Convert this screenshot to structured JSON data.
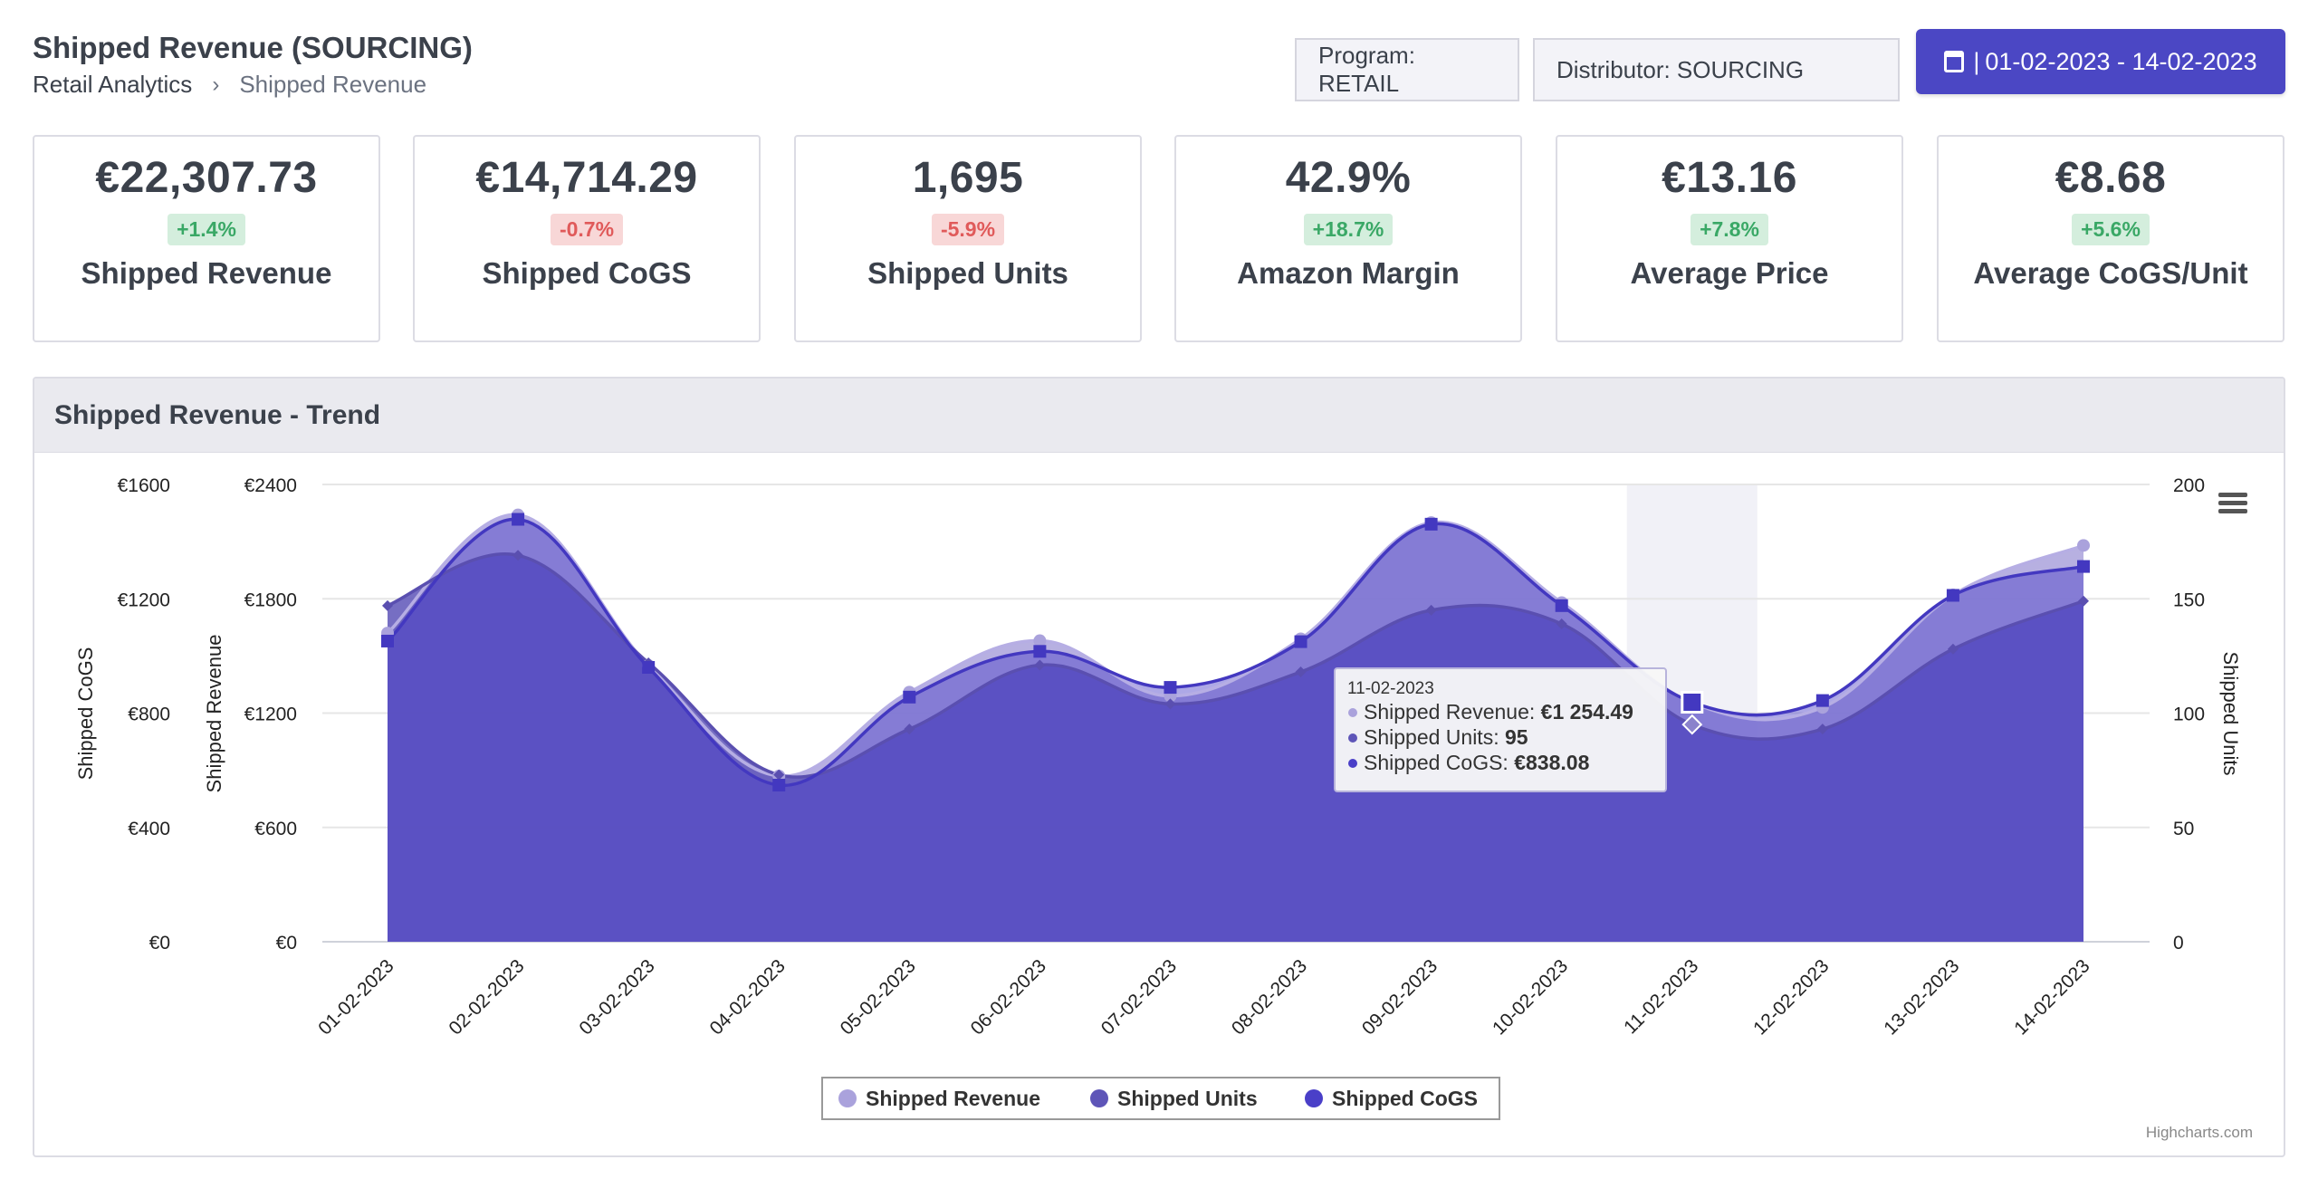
{
  "header": {
    "title": "Shipped Revenue (SOURCING)",
    "breadcrumb_root": "Retail Analytics",
    "breadcrumb_sep": "›",
    "breadcrumb_current": "Shipped Revenue"
  },
  "filters": {
    "program": "Program: RETAIL",
    "distributor": "Distributor: SOURCING",
    "date_range": "01-02-2023 - 14-02-2023",
    "date_sep": "|"
  },
  "kpis": [
    {
      "value": "€22,307.73",
      "change": "+1.4%",
      "direction": "up",
      "label": "Shipped Revenue"
    },
    {
      "value": "€14,714.29",
      "change": "-0.7%",
      "direction": "down",
      "label": "Shipped CoGS"
    },
    {
      "value": "1,695",
      "change": "-5.9%",
      "direction": "down",
      "label": "Shipped Units"
    },
    {
      "value": "42.9%",
      "change": "+18.7%",
      "direction": "up",
      "label": "Amazon Margin"
    },
    {
      "value": "€13.16",
      "change": "+7.8%",
      "direction": "up",
      "label": "Average Price"
    },
    {
      "value": "€8.68",
      "change": "+5.6%",
      "direction": "up",
      "label": "Average CoGS/Unit"
    }
  ],
  "panel": {
    "title": "Shipped Revenue - Trend"
  },
  "colors": {
    "revenue": "#aaa2dc",
    "units": "#5e55b8",
    "cogs": "#4a3fc8",
    "positive": "#3aa866",
    "negative": "#e05a5a",
    "accent": "#4b47c4"
  },
  "chart_data": {
    "type": "area",
    "categories": [
      "01-02-2023",
      "02-02-2023",
      "03-02-2023",
      "04-02-2023",
      "05-02-2023",
      "06-02-2023",
      "07-02-2023",
      "08-02-2023",
      "09-02-2023",
      "10-02-2023",
      "11-02-2023",
      "12-02-2023",
      "13-02-2023",
      "14-02-2023"
    ],
    "series": [
      {
        "name": "Shipped Revenue",
        "axis": "left",
        "marker": "circle",
        "values": [
          1620,
          2240,
          1450,
          870,
          1310,
          1580,
          1290,
          1590,
          2200,
          1780,
          1254.49,
          1230,
          1820,
          2080
        ]
      },
      {
        "name": "Shipped Units",
        "axis": "right",
        "marker": "diamond",
        "values": [
          147,
          169,
          122,
          73,
          93,
          121,
          104,
          118,
          145,
          139,
          95,
          93,
          128,
          149
        ]
      },
      {
        "name": "Shipped CoGS",
        "axis": "cogs",
        "marker": "square",
        "values": [
          1052,
          1478,
          960,
          548,
          856,
          1016,
          890,
          1050,
          1461,
          1176,
          838.08,
          844,
          1212,
          1313
        ]
      }
    ],
    "axes": {
      "cogs": {
        "label": "Shipped CoGS",
        "range": [
          0,
          1600
        ],
        "ticks": [
          "€0",
          "€400",
          "€800",
          "€1200",
          "€1600"
        ]
      },
      "revenue": {
        "label": "Shipped Revenue",
        "range": [
          0,
          2400
        ],
        "ticks": [
          "€0",
          "€600",
          "€1200",
          "€1800",
          "€2400"
        ]
      },
      "units": {
        "label": "Shipped Units",
        "range": [
          0,
          200
        ],
        "ticks": [
          "0",
          "50",
          "100",
          "150",
          "200"
        ]
      }
    },
    "grid": true,
    "legend_position": "bottom-center",
    "tooltip": {
      "date": "11-02-2023",
      "rows": [
        {
          "label": "Shipped Revenue: ",
          "value": "€1 254.49"
        },
        {
          "label": "Shipped Units: ",
          "value": "95"
        },
        {
          "label": "Shipped CoGS: ",
          "value": "€838.08"
        }
      ],
      "index": 10
    },
    "credits": "Highcharts.com"
  }
}
